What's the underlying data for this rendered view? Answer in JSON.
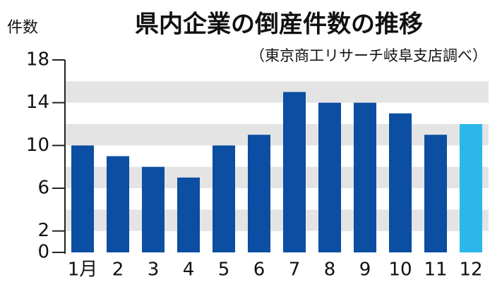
{
  "chart_data": {
    "type": "bar",
    "title": "県内企業の倒産件数の推移",
    "subtitle": "（東京商工リサーチ岐阜支店調べ）",
    "y_label": "件数",
    "categories": [
      "1月",
      "2",
      "3",
      "4",
      "5",
      "6",
      "7",
      "8",
      "9",
      "10",
      "11",
      "12"
    ],
    "values": [
      10,
      9,
      8,
      7,
      10,
      11,
      15,
      14,
      14,
      13,
      11,
      12
    ],
    "colors": [
      "#0b4ea2",
      "#0b4ea2",
      "#0b4ea2",
      "#0b4ea2",
      "#0b4ea2",
      "#0b4ea2",
      "#0b4ea2",
      "#0b4ea2",
      "#0b4ea2",
      "#0b4ea2",
      "#0b4ea2",
      "#2bb7ea"
    ],
    "ylim": [
      0,
      18
    ],
    "yticks": [
      0,
      2,
      6,
      10,
      14,
      18
    ],
    "grid": true
  }
}
